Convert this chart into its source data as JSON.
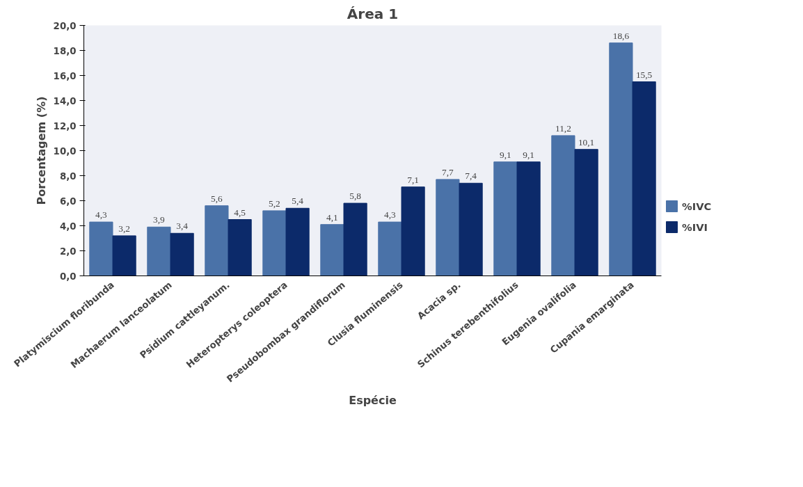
{
  "chart_data": {
    "type": "bar",
    "title": "Área 1",
    "xlabel": "Espécie",
    "ylabel": "Porcentagem (%)",
    "categories": [
      "Platymiscium floribunda",
      "Machaerum lanceolatum",
      "Psidium cattleyanum.",
      "Heteropterys coleoptera",
      "Pseudobombax grandiflorum",
      "Clusia fluminensis",
      "Acacia sp.",
      "Schinus terebenthifolius",
      "Eugenia ovalifolia",
      "Cupania emarginata"
    ],
    "series": [
      {
        "name": "%IVC",
        "color": "#4a72a8",
        "values": [
          4.3,
          3.9,
          5.6,
          5.2,
          4.1,
          4.3,
          7.7,
          9.1,
          11.2,
          18.6
        ],
        "value_labels": [
          "4,3",
          "3,9",
          "5,6",
          "5,2",
          "4,1",
          "4,3",
          "7,7",
          "9,1",
          "11,2",
          "18,6"
        ]
      },
      {
        "name": "%IVI",
        "color": "#0c2a6a",
        "values": [
          3.2,
          3.4,
          4.5,
          5.4,
          5.8,
          7.1,
          7.4,
          9.1,
          10.1,
          15.5
        ],
        "value_labels": [
          "3,2",
          "3,4",
          "4,5",
          "5,4",
          "5,8",
          "7,1",
          "7,4",
          "9,1",
          "10,1",
          "15,5"
        ]
      }
    ],
    "ylim": [
      0,
      20
    ],
    "yticks": [
      {
        "value": 0,
        "label": "0,0"
      },
      {
        "value": 2,
        "label": "2,0"
      },
      {
        "value": 4,
        "label": "4,0"
      },
      {
        "value": 6,
        "label": "6,0"
      },
      {
        "value": 8,
        "label": "8,0"
      },
      {
        "value": 10,
        "label": "10,0"
      },
      {
        "value": 12,
        "label": "12,0"
      },
      {
        "value": 14,
        "label": "14,0"
      },
      {
        "value": 16,
        "label": "16,0"
      },
      {
        "value": 18,
        "label": "18,0"
      },
      {
        "value": 20,
        "label": "20,0"
      }
    ],
    "grid": false,
    "legend": "right"
  }
}
